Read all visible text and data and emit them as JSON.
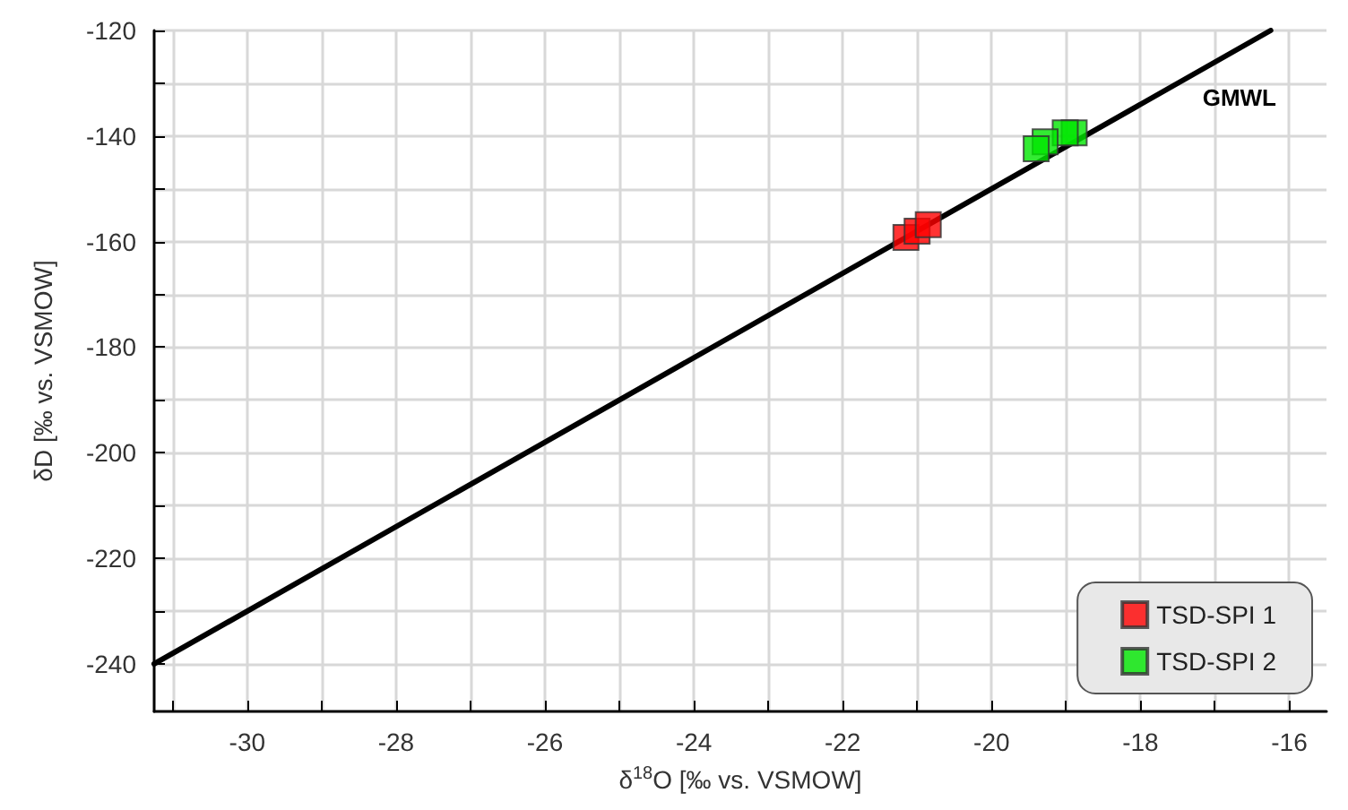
{
  "chart_data": {
    "type": "scatter",
    "xlabel": "δ$^{18}$O [‰ vs. VSMOW]",
    "ylabel": "δD [‰ vs. VSMOW]",
    "xlim": [
      -31.25,
      -15.5
    ],
    "ylim": [
      -249,
      -120
    ],
    "xticks": [
      {
        "value": -31,
        "label": null
      },
      -30,
      {
        "value": -29,
        "label": null
      },
      -28,
      {
        "value": -27,
        "label": null
      },
      -26,
      {
        "value": -25,
        "label": null
      },
      -24,
      {
        "value": -23,
        "label": null
      },
      -22,
      {
        "value": -21,
        "label": null
      },
      -20,
      {
        "value": -19,
        "label": null
      },
      -18,
      {
        "value": -17,
        "label": null
      },
      -16
    ],
    "yticks": [
      -240,
      {
        "value": -230,
        "label": null
      },
      -220,
      {
        "value": -210,
        "label": null
      },
      -200,
      {
        "value": -190,
        "label": null
      },
      -180,
      {
        "value": -170,
        "label": null
      },
      -160,
      {
        "value": -150,
        "label": null
      },
      -140,
      {
        "value": -130,
        "label": null
      },
      -120
    ],
    "grid": true,
    "legend": "bottom right",
    "marker": "square",
    "series": [
      {
        "type": "line",
        "color": "#000000",
        "x": [
          -31.25,
          -16.25
        ],
        "values": [
          -240,
          -120
        ],
        "marker": "none",
        "line_style": "solid"
      },
      {
        "name": "TSD-SPI 1",
        "color": "#ff0000",
        "x": [
          -21.15,
          -21.0,
          -20.85
        ],
        "values": [
          -159.2,
          -158.0,
          -156.8
        ]
      },
      {
        "name": "TSD-SPI 2",
        "color": "#00e600",
        "x": [
          -18.89,
          -19.01,
          -19.28,
          -19.4
        ],
        "values": [
          -139.4,
          -139.4,
          -141.1,
          -142.4
        ]
      }
    ],
    "annotations": [
      "GMWL"
    ]
  }
}
